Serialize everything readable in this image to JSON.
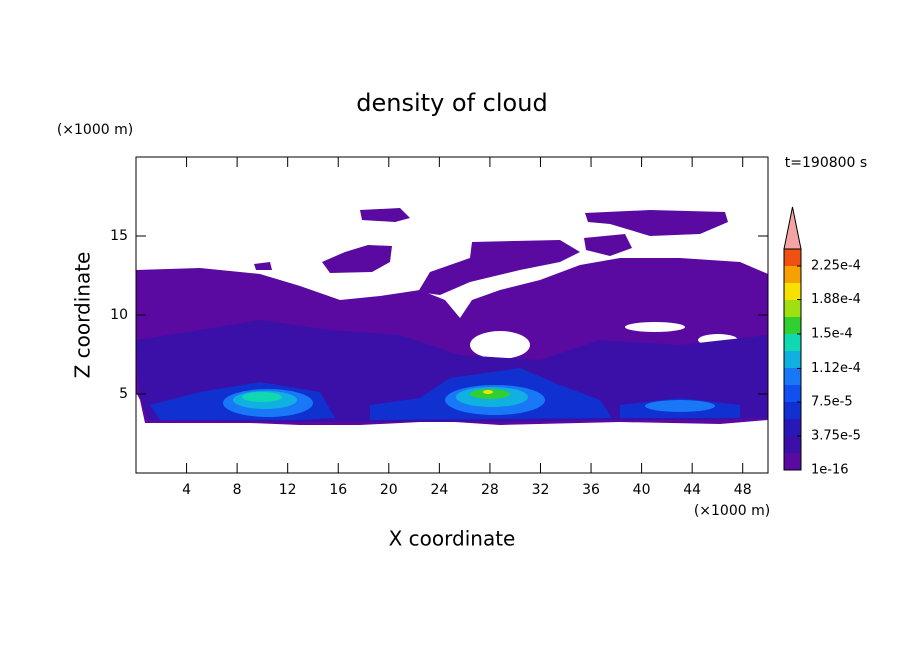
{
  "chart_data": {
    "type": "contour",
    "title": "density of cloud",
    "xlabel": "X coordinate",
    "ylabel": "Z coordinate",
    "x_unit": "(×1000 m)",
    "y_unit": "(×1000 m)",
    "time_label": "t=190800 s",
    "xlim": [
      0,
      50
    ],
    "xticks": [
      4,
      8,
      12,
      16,
      20,
      24,
      28,
      32,
      36,
      40,
      44,
      48
    ],
    "ylim": [
      0,
      20
    ],
    "yticks": [
      5,
      10,
      15
    ],
    "clim": [
      1e-16,
      0.00024375
    ],
    "cticks": [
      {
        "value": 1e-16,
        "label": "1e-16"
      },
      {
        "value": 3.75e-05,
        "label": "3.75e-5"
      },
      {
        "value": 7.5e-05,
        "label": "7.5e-5"
      },
      {
        "value": 0.000112,
        "label": "1.12e-4"
      },
      {
        "value": 0.00015,
        "label": "1.5e-4"
      },
      {
        "value": 0.000188,
        "label": "1.88e-4"
      },
      {
        "value": 0.000225,
        "label": "2.25e-4"
      }
    ],
    "colors": [
      "#5a0aa0",
      "#3a10a8",
      "#2818b8",
      "#1030d0",
      "#1050f0",
      "#1878f8",
      "#10b0e0",
      "#10d8b0",
      "#30d030",
      "#a0e010",
      "#f8e000",
      "#f8a000",
      "#f05010"
    ],
    "extend_color": "#f4a4a4"
  }
}
